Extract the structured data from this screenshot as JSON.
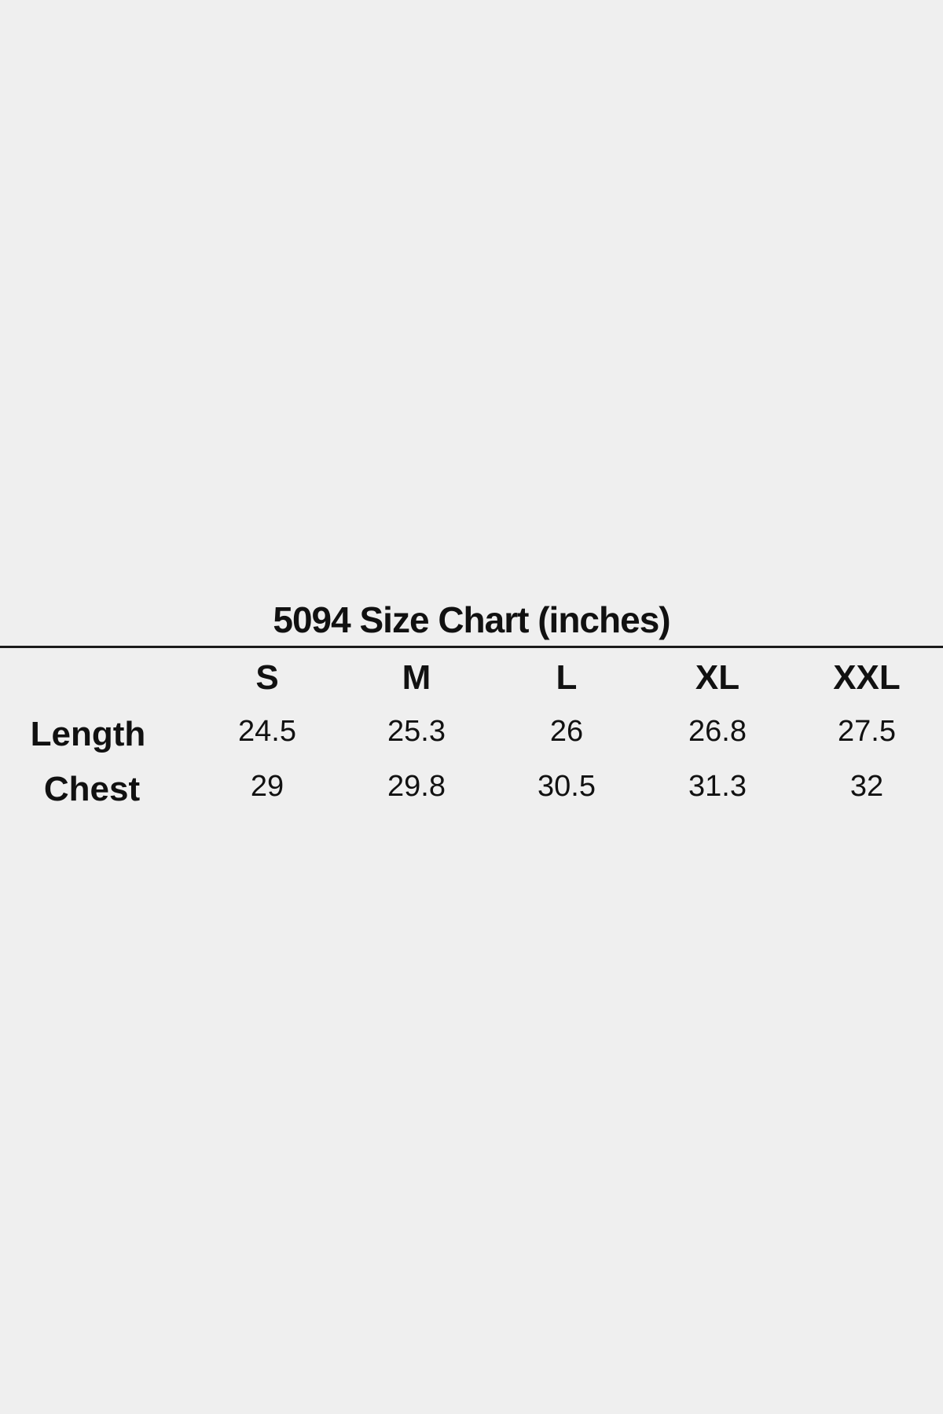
{
  "chart_data": {
    "type": "table",
    "title": "5094 Size Chart (inches)",
    "columns": [
      "S",
      "M",
      "L",
      "XL",
      "XXL"
    ],
    "rows": [
      {
        "label": "Length",
        "values": [
          "24.5",
          "25.3",
          "26",
          "26.8",
          "27.5"
        ]
      },
      {
        "label": "Chest",
        "values": [
          "29",
          "29.8",
          "30.5",
          "31.3",
          "32"
        ]
      }
    ]
  }
}
